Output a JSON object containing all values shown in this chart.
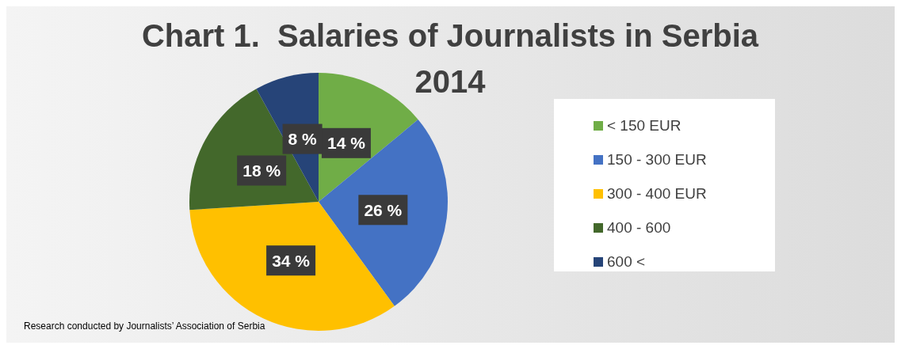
{
  "chart_data": {
    "type": "pie",
    "title": "Chart 1.  Salaries of Journalists in Serbia 2014",
    "categories": [
      "< 150 EUR",
      "150 - 300 EUR",
      "300 - 400 EUR",
      "400 - 600",
      "600 <"
    ],
    "values": [
      14,
      26,
      34,
      18,
      8
    ],
    "colors": [
      "#70ad47",
      "#4472c4",
      "#ffc000",
      "#43682b",
      "#264478"
    ],
    "value_labels": [
      "14 %",
      "26 %",
      "34 %",
      "18 %",
      "8 %"
    ],
    "legend": "right",
    "annotations": [
      "Research conducted by Journalists’ Association of Serbia"
    ]
  }
}
